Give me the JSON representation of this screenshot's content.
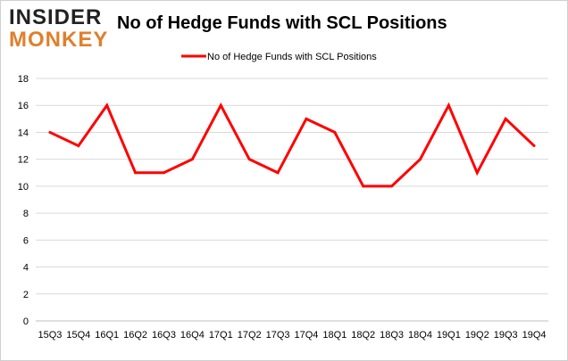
{
  "logo": {
    "top": "INSIDER",
    "bottom": "MONKEY"
  },
  "chart_data": {
    "type": "line",
    "title": "No of Hedge Funds with SCL Positions",
    "xlabel": "",
    "ylabel": "",
    "categories": [
      "15Q3",
      "15Q4",
      "16Q1",
      "16Q2",
      "16Q3",
      "16Q4",
      "17Q1",
      "17Q2",
      "17Q3",
      "17Q4",
      "18Q1",
      "18Q2",
      "18Q3",
      "18Q4",
      "19Q1",
      "19Q2",
      "19Q3",
      "19Q4"
    ],
    "series": [
      {
        "name": "No of Hedge Funds with SCL Positions",
        "values": [
          14,
          13,
          16,
          11,
          11,
          12,
          16,
          12,
          11,
          15,
          14,
          10,
          10,
          12,
          16,
          11,
          15,
          13
        ],
        "color": "#ff0000"
      }
    ],
    "ylim": [
      0,
      18
    ],
    "yticks": [
      0,
      2,
      4,
      6,
      8,
      10,
      12,
      14,
      16,
      18
    ],
    "grid": true,
    "legend": "top-center"
  }
}
